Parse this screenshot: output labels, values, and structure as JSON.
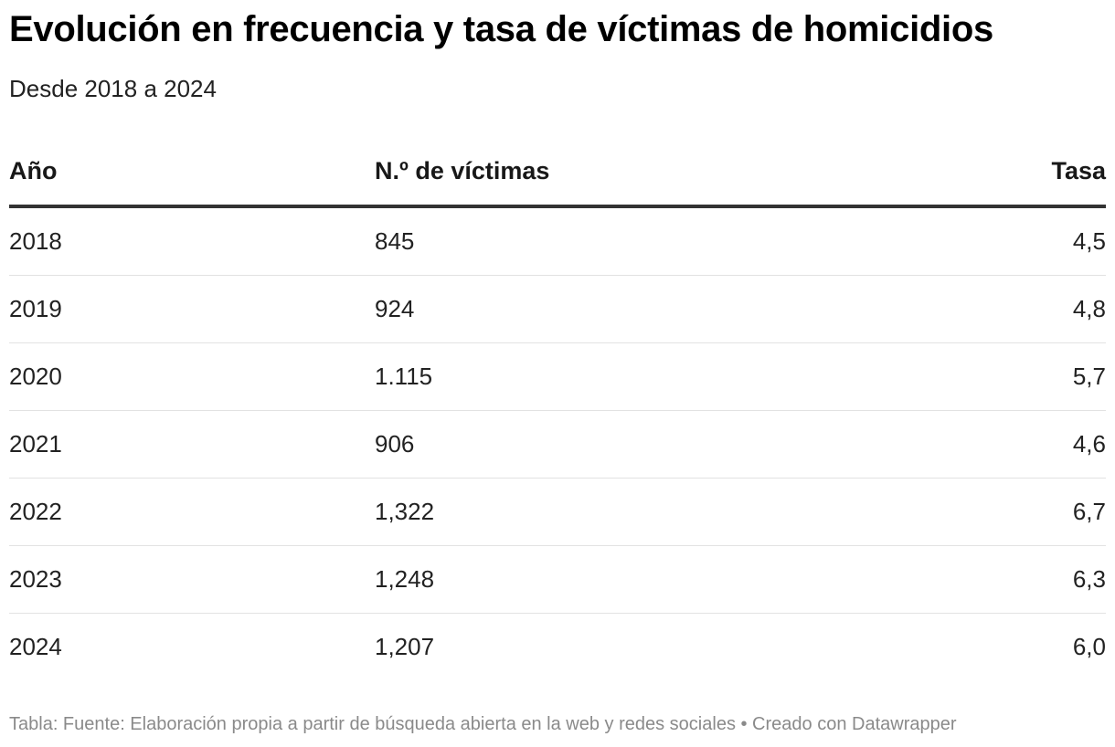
{
  "title": "Evolución en frecuencia y tasa de víctimas de homicidios",
  "subtitle": "Desde 2018 a 2024",
  "chart_data": {
    "type": "table",
    "columns": [
      "Año",
      "N.º de víctimas",
      "Tasa"
    ],
    "rows": [
      [
        "2018",
        "845",
        "4,5"
      ],
      [
        "2019",
        "924",
        "4,8"
      ],
      [
        "2020",
        "1.115",
        "5,7"
      ],
      [
        "2021",
        "906",
        "4,6"
      ],
      [
        "2022",
        "1,322",
        "6,7"
      ],
      [
        "2023",
        "1,248",
        "6,3"
      ],
      [
        "2024",
        "1,207",
        "6,0"
      ]
    ]
  },
  "notes": "Tabla: Fuente: Elaboración propia a partir de búsqueda abierta en la web y redes sociales • Creado con Datawrapper"
}
